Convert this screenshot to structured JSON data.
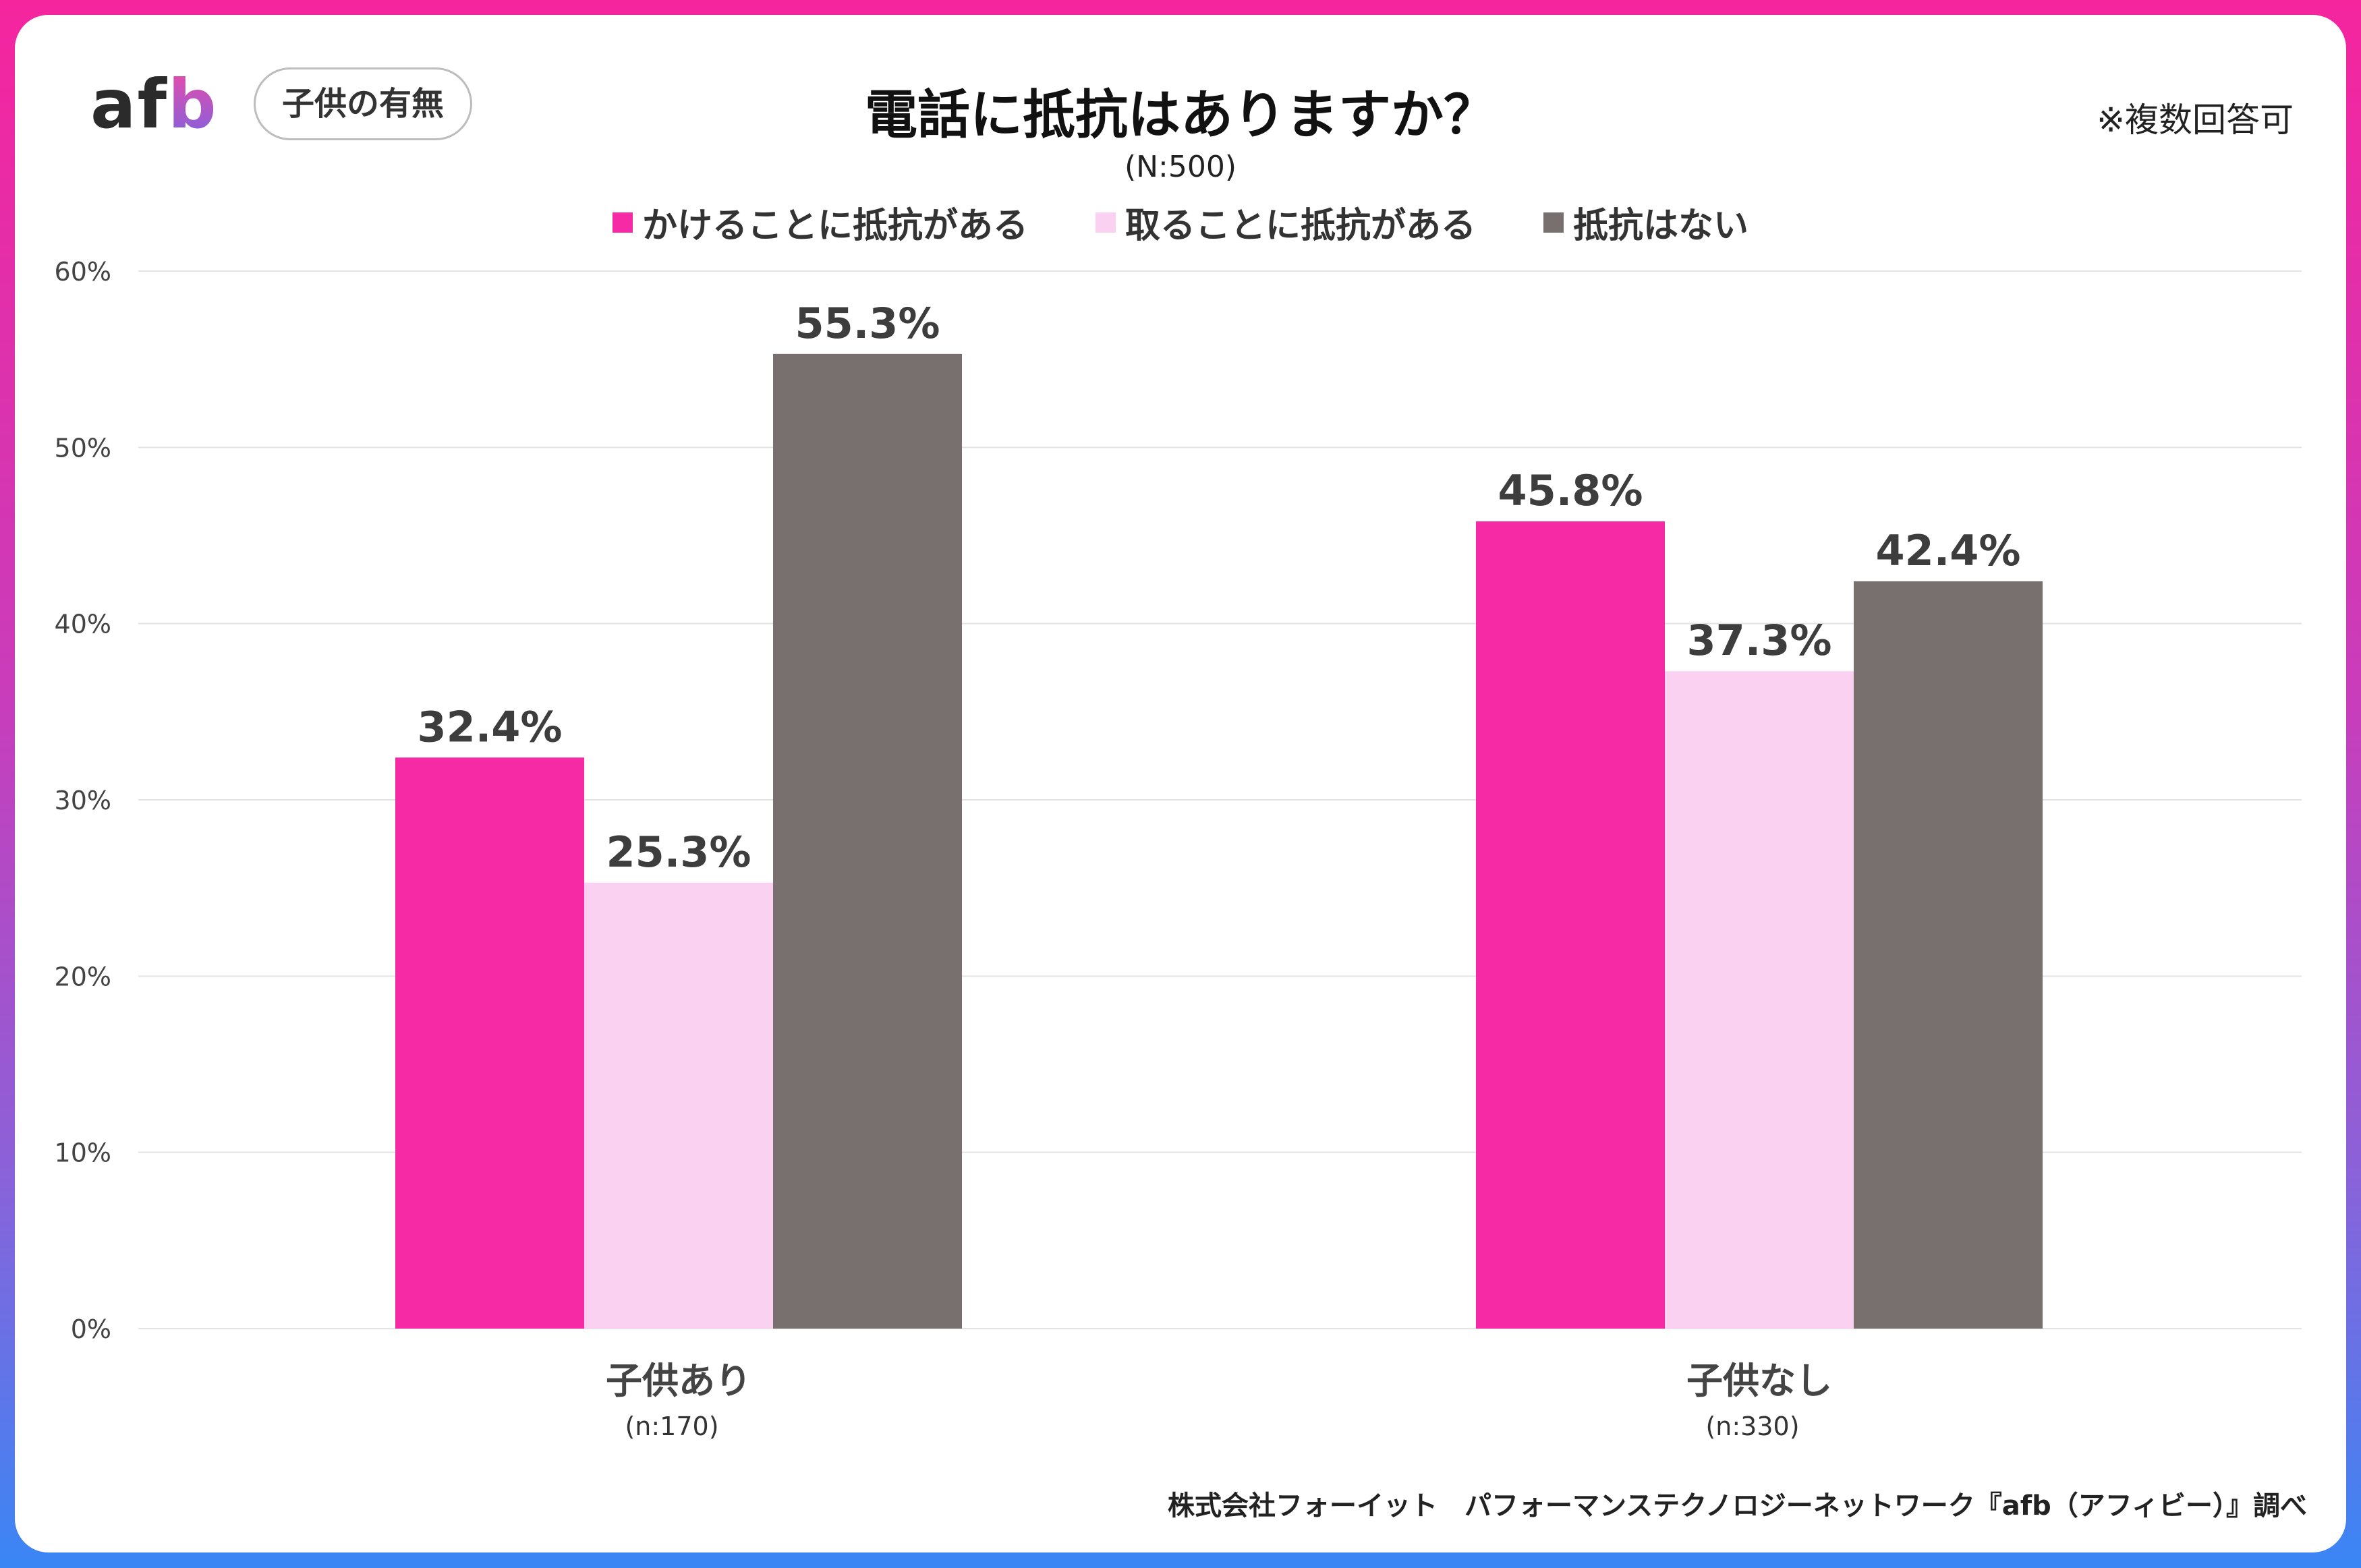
{
  "header": {
    "logo_text": "afb",
    "segment_label": "子供の有無",
    "title": "電話に抵抗はありますか？",
    "sample_size": "(N:500)",
    "note": "※複数回答可"
  },
  "colors": {
    "series1": "#f72aa5",
    "series2": "#fbd1f2",
    "series3": "#77706e",
    "grid": "#e3e3e3",
    "label": "#3d3d3d"
  },
  "chart_data": {
    "type": "bar",
    "title": "電話に抵抗はありますか？",
    "categories": [
      "子供あり",
      "子供なし"
    ],
    "category_sublabels": [
      "(n:170)",
      "(n:330)"
    ],
    "series": [
      {
        "name": "かけることに抵抗がある",
        "values": [
          32.4,
          45.8
        ]
      },
      {
        "name": "取ることに抵抗がある",
        "values": [
          25.3,
          37.3
        ]
      },
      {
        "name": "抵抗はない",
        "values": [
          55.3,
          42.4
        ]
      }
    ],
    "value_labels": [
      [
        "32.4%",
        "45.8%"
      ],
      [
        "25.3%",
        "37.3%"
      ],
      [
        "55.3%",
        "42.4%"
      ]
    ],
    "yticks": [
      "0%",
      "10%",
      "20%",
      "30%",
      "40%",
      "50%",
      "60%"
    ],
    "ylim": [
      0,
      60
    ],
    "xlabel": "",
    "ylabel": "",
    "grid": true,
    "legend": "top-center"
  },
  "footer": {
    "credit": "株式会社フォーイット　パフォーマンステクノロジーネットワーク『afb（アフィビー）』調べ"
  }
}
